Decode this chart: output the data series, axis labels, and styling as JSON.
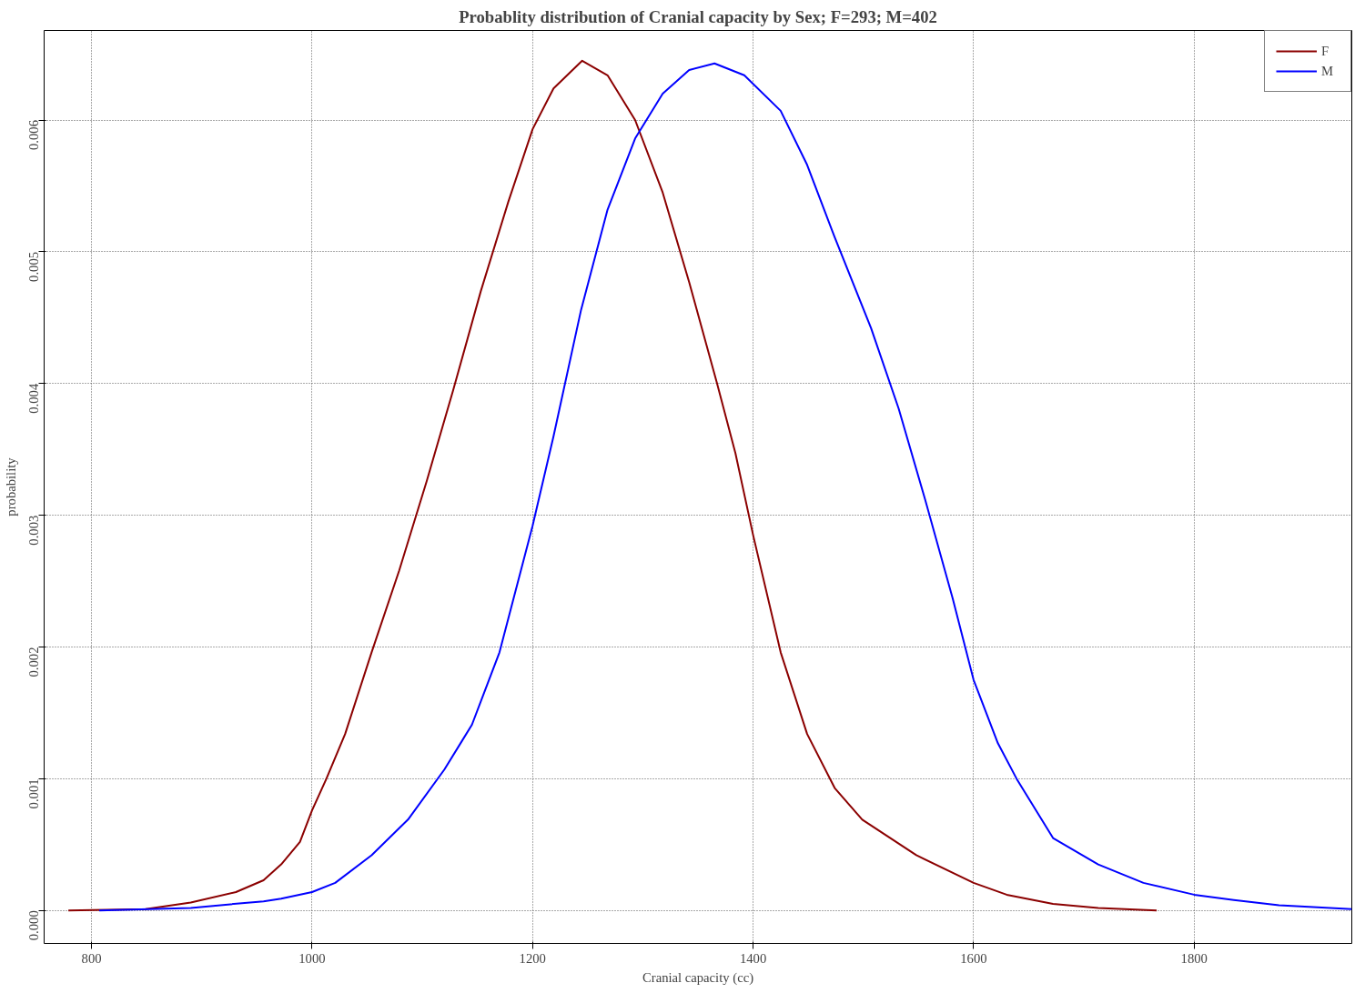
{
  "chart_data": {
    "type": "line",
    "title": "Probablity distribution of Cranial capacity by Sex; F=293; M=402",
    "xlabel": "Cranial capacity (cc)",
    "ylabel": "probability",
    "series": [
      {
        "name": "F",
        "color": "#8b0000",
        "x": [
          779,
          849,
          890,
          931,
          956,
          972,
          989,
          1000,
          1013,
          1030,
          1054,
          1079,
          1104,
          1128,
          1153,
          1178,
          1200,
          1219,
          1245,
          1268,
          1293,
          1318,
          1342,
          1367,
          1384,
          1400,
          1425,
          1449,
          1474,
          1499,
          1548,
          1600,
          1630,
          1672,
          1713,
          1766
        ],
        "values": [
          0,
          1e-05,
          6e-05,
          0.00014,
          0.00023,
          0.00035,
          0.00052,
          0.00076,
          0.001,
          0.00134,
          0.00196,
          0.00258,
          0.00326,
          0.00395,
          0.0047,
          0.00538,
          0.00593,
          0.00624,
          0.00645,
          0.00634,
          0.006,
          0.00545,
          0.00477,
          0.00401,
          0.00347,
          0.00285,
          0.00196,
          0.00134,
          0.00093,
          0.00069,
          0.00042,
          0.00021,
          0.00012,
          5e-05,
          2e-05,
          0
        ]
      },
      {
        "name": "M",
        "color": "#0000ff",
        "x": [
          807,
          890,
          956,
          972,
          1000,
          1021,
          1054,
          1087,
          1120,
          1145,
          1170,
          1200,
          1219,
          1244,
          1268,
          1293,
          1318,
          1342,
          1365,
          1392,
          1425,
          1449,
          1474,
          1507,
          1532,
          1556,
          1581,
          1600,
          1622,
          1639,
          1672,
          1713,
          1754,
          1800,
          1836,
          1877,
          1943
        ],
        "values": [
          0,
          2e-05,
          7e-05,
          9e-05,
          0.00014,
          0.00021,
          0.00042,
          0.00069,
          0.00107,
          0.00141,
          0.00196,
          0.00292,
          0.0036,
          0.00456,
          0.00532,
          0.00586,
          0.0062,
          0.00638,
          0.00643,
          0.00634,
          0.00607,
          0.00566,
          0.00511,
          0.00442,
          0.00381,
          0.00312,
          0.00237,
          0.00175,
          0.00127,
          0.001,
          0.00055,
          0.00035,
          0.00021,
          0.00012,
          8e-05,
          4e-05,
          1e-05
        ]
      }
    ],
    "xlim": [
      757,
      1943
    ],
    "ylim": [
      -0.00025,
      0.00668
    ],
    "xticks": [
      800,
      1000,
      1200,
      1400,
      1600,
      1800
    ],
    "yticks": [
      {
        "value": 0,
        "label": "0.000"
      },
      {
        "value": 0.001,
        "label": "0.001"
      },
      {
        "value": 0.002,
        "label": "0.002"
      },
      {
        "value": 0.003,
        "label": "0.003"
      },
      {
        "value": 0.004,
        "label": "0.004"
      },
      {
        "value": 0.005,
        "label": "0.005"
      },
      {
        "value": 0.006,
        "label": "0.006"
      }
    ],
    "grid": true,
    "legend": "top right",
    "line_style": "solid",
    "marker": "none"
  }
}
